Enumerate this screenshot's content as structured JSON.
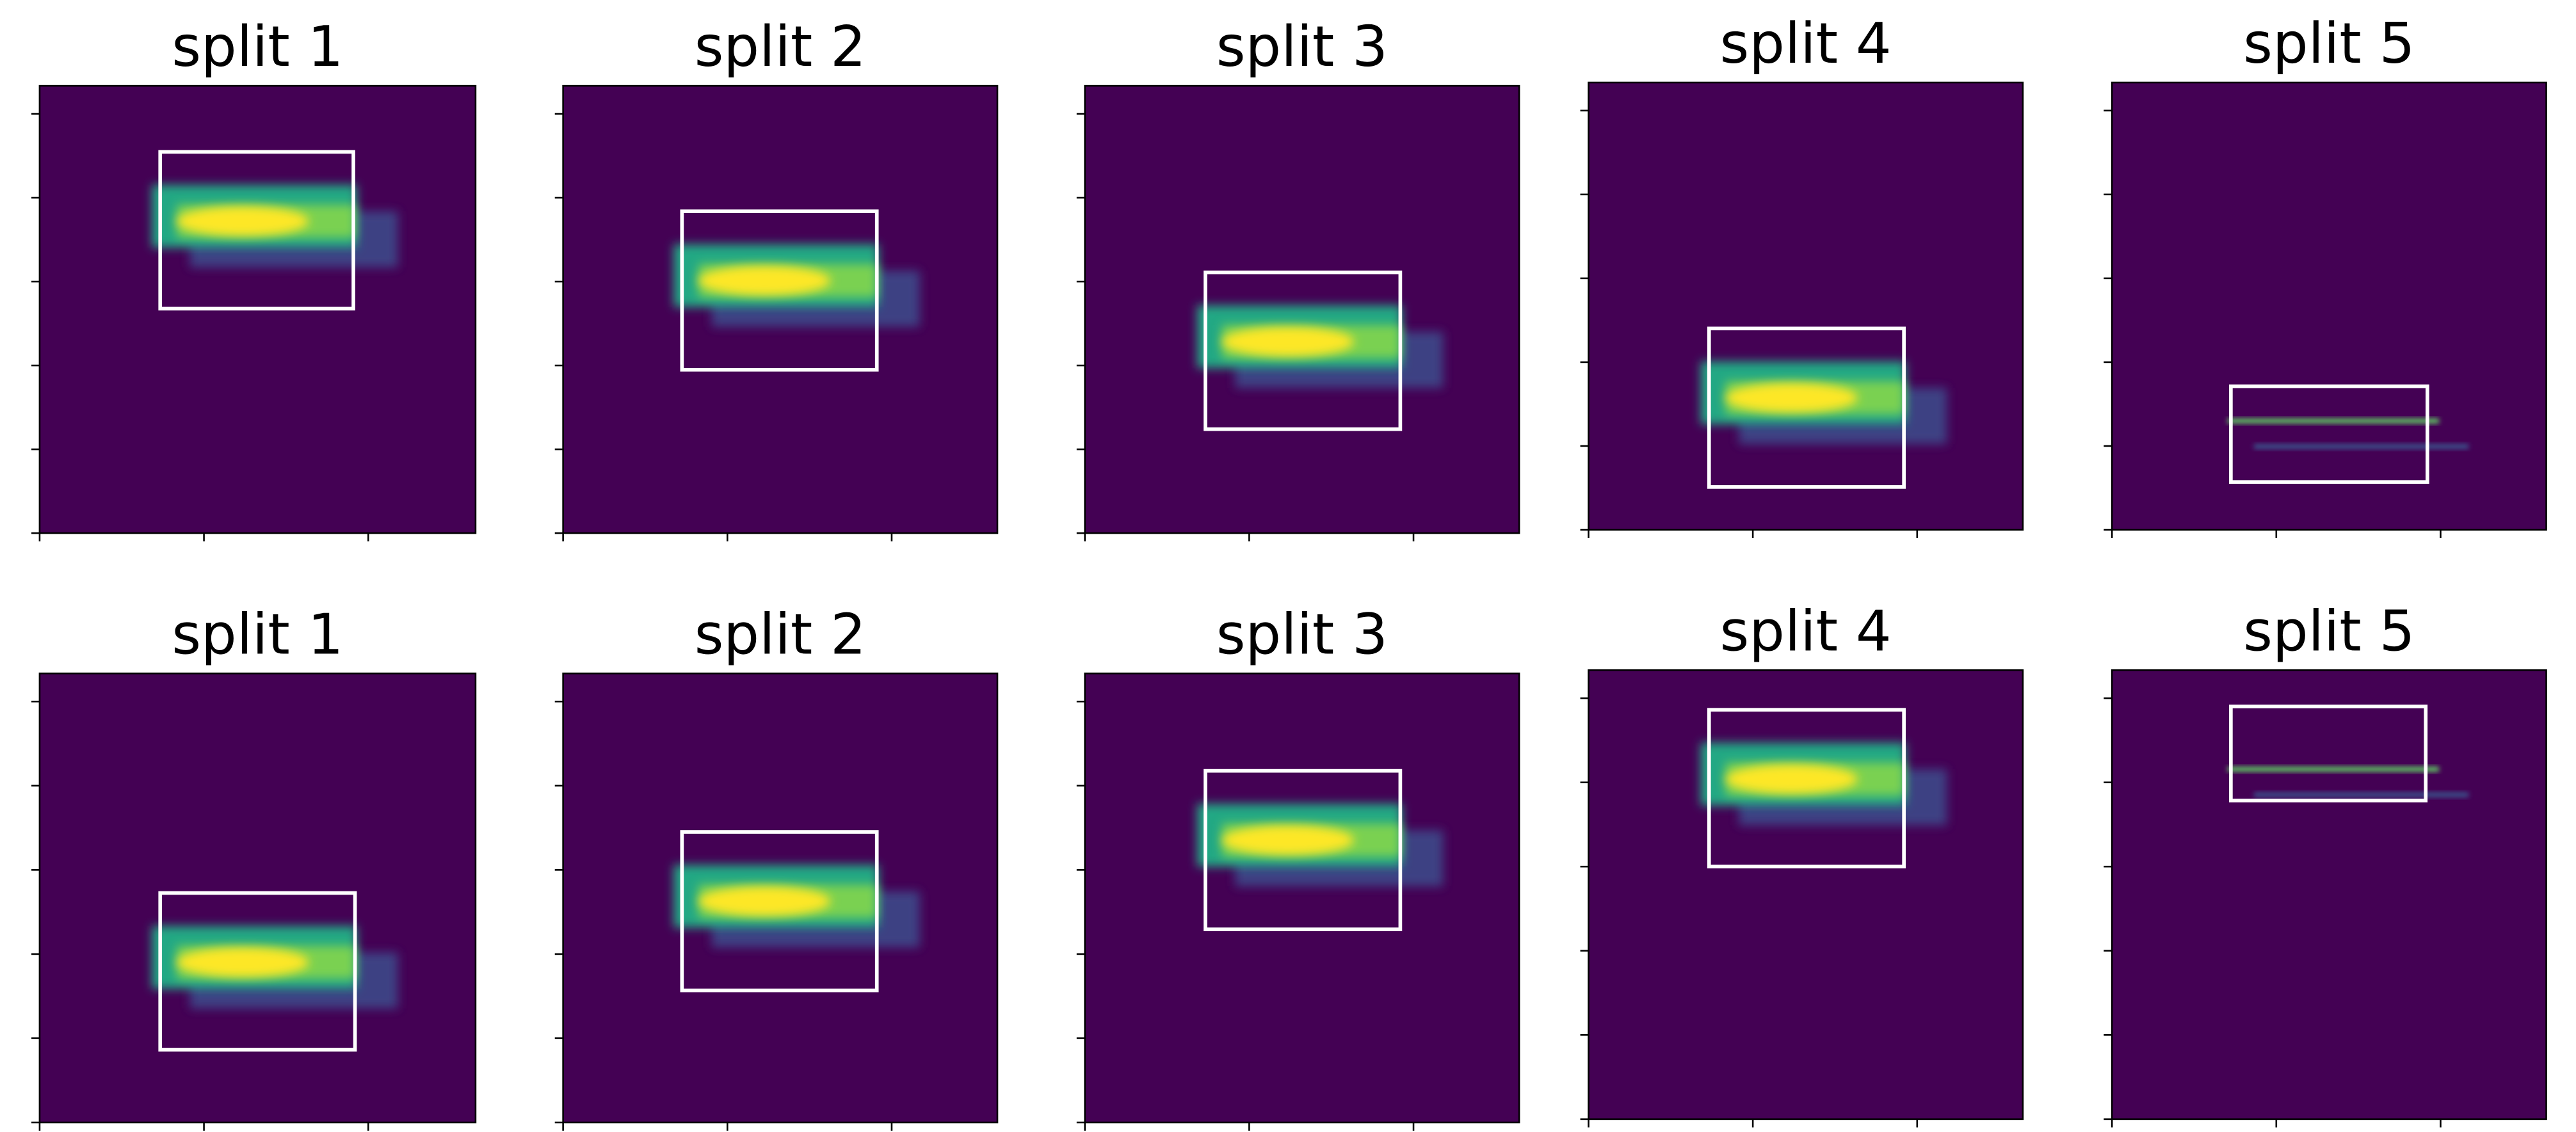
{
  "panels": [
    {
      "title": "split 1"
    },
    {
      "title": "split 2"
    },
    {
      "title": "split 3"
    },
    {
      "title": "split 4"
    },
    {
      "title": "split 5"
    },
    {
      "title": "split 1"
    },
    {
      "title": "split 2"
    },
    {
      "title": "split 3"
    },
    {
      "title": "split 4"
    },
    {
      "title": "split 5"
    }
  ]
}
